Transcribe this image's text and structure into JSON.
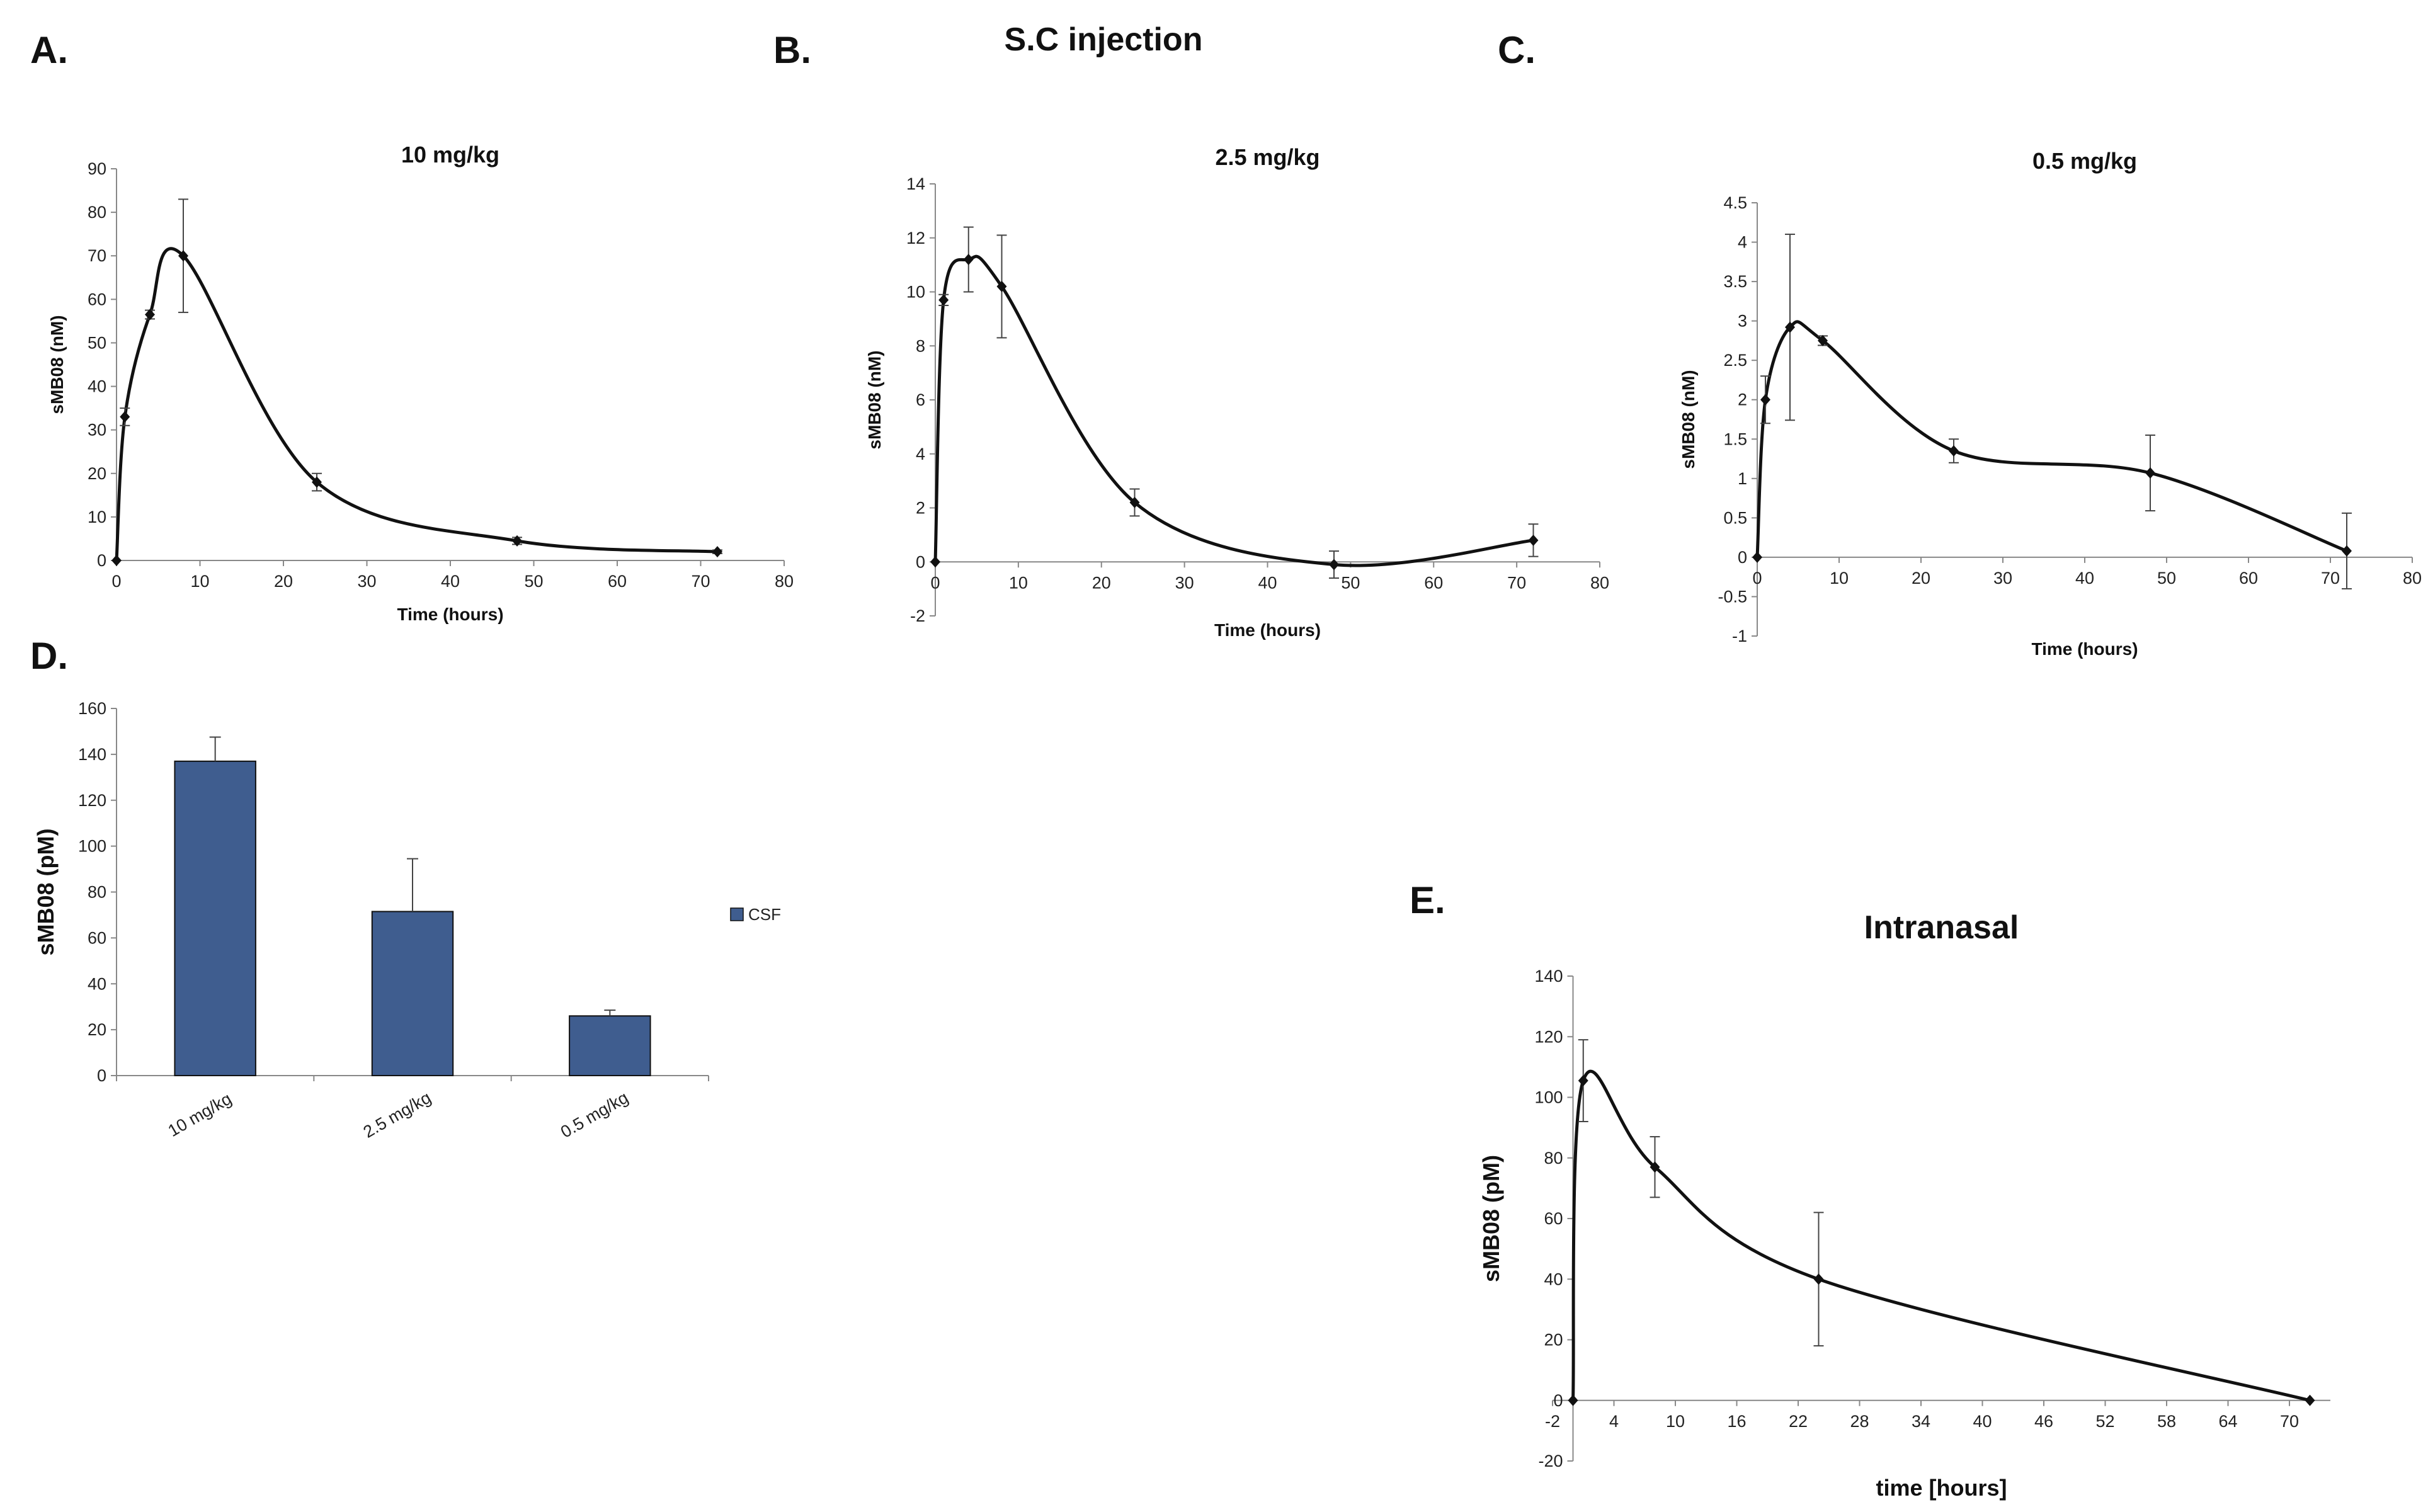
{
  "figure": {
    "group_title": "S.C injection",
    "panel_letters": [
      "A.",
      "B.",
      "C.",
      "D.",
      "E."
    ]
  },
  "chart_data": [
    {
      "id": "A",
      "type": "line",
      "title": "10 mg/kg",
      "xlabel": "Time (hours)",
      "ylabel": "sMB08 (nM)",
      "xlim": [
        0,
        80
      ],
      "ylim": [
        0,
        90
      ],
      "xticks": [
        0,
        10,
        20,
        30,
        40,
        50,
        60,
        70,
        80
      ],
      "yticks": [
        0,
        10,
        20,
        30,
        40,
        50,
        60,
        70,
        80,
        90
      ],
      "series": [
        {
          "x": [
            0,
            1,
            4,
            8,
            24,
            48,
            72
          ],
          "values": [
            0,
            33,
            56.5,
            70,
            18,
            4.5,
            2
          ],
          "errors": [
            0,
            2,
            1,
            13,
            2,
            0.8,
            0.4
          ]
        }
      ],
      "grid": false,
      "legend": "none"
    },
    {
      "id": "B",
      "type": "line",
      "title": "2.5  mg/kg",
      "xlabel": "Time (hours)",
      "ylabel": "sMB08 (nM)",
      "xlim": [
        0,
        80
      ],
      "ylim": [
        -2,
        14
      ],
      "xticks": [
        0,
        10,
        20,
        30,
        40,
        50,
        60,
        70,
        80
      ],
      "yticks": [
        -2,
        0,
        2,
        4,
        6,
        8,
        10,
        12,
        14
      ],
      "series": [
        {
          "x": [
            0,
            1,
            4,
            8,
            24,
            48,
            72
          ],
          "values": [
            0,
            9.7,
            11.2,
            10.2,
            2.2,
            -0.1,
            0.8
          ],
          "errors": [
            0,
            0.2,
            1.2,
            1.9,
            0.5,
            0.5,
            0.6
          ]
        }
      ],
      "grid": false,
      "legend": "none"
    },
    {
      "id": "C",
      "type": "line",
      "title": "0.5  mg/kg",
      "xlabel": "Time (hours)",
      "ylabel": "sMB08 (nM)",
      "xlim": [
        0,
        80
      ],
      "ylim": [
        -1,
        4.5
      ],
      "xticks": [
        0,
        10,
        20,
        30,
        40,
        50,
        60,
        70,
        80
      ],
      "yticks": [
        -1,
        -0.5,
        0,
        0.5,
        1,
        1.5,
        2,
        2.5,
        3,
        3.5,
        4,
        4.5
      ],
      "series": [
        {
          "x": [
            0,
            1,
            4,
            8,
            24,
            48,
            72
          ],
          "values": [
            0,
            2.0,
            2.92,
            2.75,
            1.35,
            1.07,
            0.08
          ],
          "errors": [
            0,
            0.3,
            1.18,
            0.06,
            0.15,
            0.48,
            0.48
          ]
        }
      ],
      "grid": false,
      "legend": "none"
    },
    {
      "id": "D",
      "type": "bar",
      "title": "",
      "xlabel": "",
      "ylabel": "sMB08 (pM)",
      "categories": [
        "10 mg/kg",
        "2.5 mg/kg",
        "0.5 mg/kg"
      ],
      "ylim": [
        0,
        160
      ],
      "yticks": [
        0,
        20,
        40,
        60,
        80,
        100,
        120,
        140,
        160
      ],
      "series": [
        {
          "name": "CSF",
          "values": [
            137,
            71.5,
            26
          ],
          "errors": [
            10.5,
            23,
            2.5
          ],
          "color": "#3F5D8F"
        }
      ],
      "grid": false,
      "legend": "right"
    },
    {
      "id": "E",
      "type": "line",
      "title": "Intranasal",
      "xlabel": "time [hours]",
      "ylabel": "sMB08 (pM)",
      "xlim": [
        -2,
        74
      ],
      "ylim": [
        -20,
        140
      ],
      "xticks": [
        -2,
        4,
        10,
        16,
        22,
        28,
        34,
        40,
        46,
        52,
        58,
        64,
        70
      ],
      "yticks": [
        -20,
        0,
        20,
        40,
        60,
        80,
        100,
        120,
        140
      ],
      "series": [
        {
          "x": [
            0,
            1,
            8,
            24,
            72
          ],
          "values": [
            0,
            105.5,
            77,
            40,
            0
          ],
          "errors": [
            0,
            13.5,
            10,
            22,
            0
          ]
        }
      ],
      "grid": false,
      "legend": "none"
    }
  ]
}
